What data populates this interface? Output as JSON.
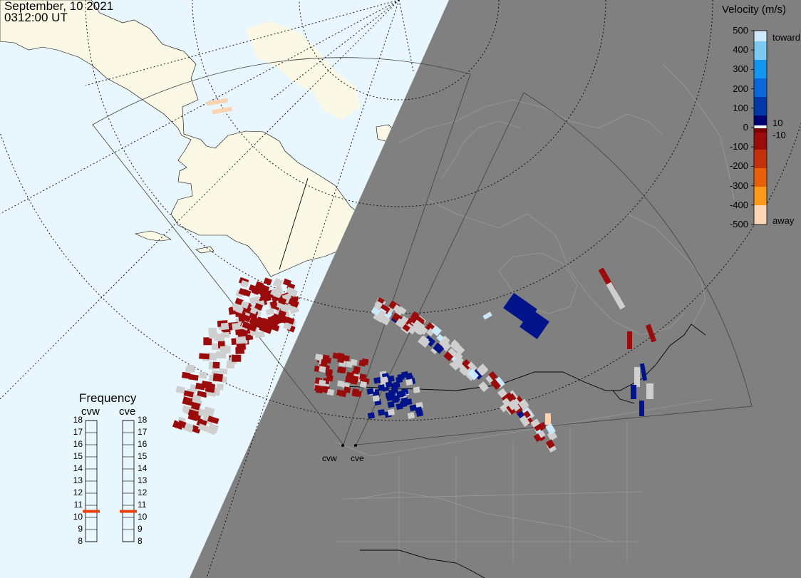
{
  "header": {
    "date": "September, 10 2021",
    "time": "0312:00 UT"
  },
  "colorbar": {
    "title": "Velocity (m/s)",
    "ticks": [
      "500",
      "400",
      "300",
      "200",
      "100",
      "0",
      "-100",
      "-200",
      "-300",
      "-400",
      "-500"
    ],
    "inner_ticks": [
      "10",
      "-10"
    ],
    "toward_label": "toward",
    "away_label": "away",
    "colors": [
      "#fcd6b5",
      "#ff9a1a",
      "#e8600a",
      "#c4300a",
      "#9a0c0c",
      "#7c0000",
      "#ffffff",
      "#000070",
      "#0038a8",
      "#0a68d8",
      "#1496f0",
      "#7ccaf4",
      "#cde9fb"
    ]
  },
  "frequency": {
    "title": "Frequency",
    "radars": [
      "cvw",
      "cve"
    ],
    "scale": [
      "18",
      "17",
      "16",
      "15",
      "14",
      "13",
      "12",
      "11",
      "10",
      "9",
      "8"
    ],
    "current_mhz": [
      10.5,
      10.5
    ],
    "marker_color": "#e8400a"
  },
  "map": {
    "ocean_color": "#e8f6fd",
    "land_color": "#fbf9e6",
    "night_color": "#808080",
    "radar_labels": [
      "cvw",
      "cve"
    ]
  }
}
